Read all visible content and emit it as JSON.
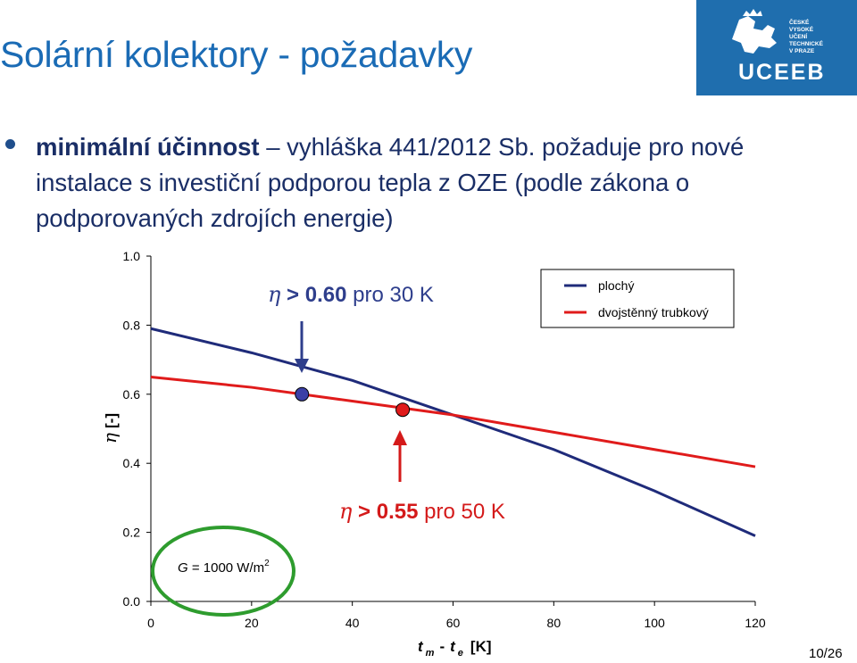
{
  "slide": {
    "title": "Solární kolektory - požadavky",
    "bullet_bold": "minimální účinnost",
    "bullet_rest": " – vyhláška 441/2012 Sb. požaduje pro nové instalace s investiční podporou tepla z OZE (podle zákona o podporovaných zdrojích energie)",
    "page_number": "10/26"
  },
  "logo": {
    "text": "UCEEB",
    "small_lines": [
      "ČESKÉ",
      "VYSOKÉ",
      "UČENÍ",
      "TECHNICKÉ",
      "V PRAZE"
    ],
    "background": "#1f6eae"
  },
  "chart_data": {
    "type": "line",
    "xlim": [
      0,
      120
    ],
    "ylim": [
      0.0,
      1.0
    ],
    "x_ticks": [
      0,
      20,
      40,
      60,
      80,
      100,
      120
    ],
    "y_ticks": [
      "0.0",
      "0.2",
      "0.4",
      "0.6",
      "0.8",
      "1.0"
    ],
    "xlabel": {
      "main_t1": "t",
      "sub1": "m",
      "dash": "-",
      "main_t2": "t",
      "sub2": "e",
      "unit": "[K]"
    },
    "ylabel": {
      "symbol": "η",
      "unit": "[-]"
    },
    "series": [
      {
        "name": "plochý",
        "color": "#1f2b7a",
        "x": [
          0,
          20,
          40,
          60,
          80,
          100,
          120
        ],
        "y": [
          0.79,
          0.72,
          0.64,
          0.54,
          0.44,
          0.32,
          0.19
        ]
      },
      {
        "name": "dvojstěnný trubkový",
        "color": "#e01b1b",
        "x": [
          0,
          20,
          40,
          60,
          80,
          100,
          120
        ],
        "y": [
          0.65,
          0.62,
          0.58,
          0.54,
          0.49,
          0.44,
          0.39
        ]
      }
    ],
    "markers": [
      {
        "x": 30,
        "y": 0.6,
        "color": "#3b3fa6"
      },
      {
        "x": 50,
        "y": 0.555,
        "color": "#e01b1b"
      }
    ],
    "annotations": [
      {
        "symbol": "η",
        "gt": " > ",
        "bold": "0.60",
        "rest": " pro 30 K",
        "arrow_color": "#2e3e8c"
      },
      {
        "symbol": "η",
        "gt": " > ",
        "bold": "0.55",
        "rest": " pro 50 K",
        "arrow_color": "#d41a1a"
      }
    ],
    "condition": {
      "symbol": "G",
      "eq": " = 1000 W/m",
      "sup": "2",
      "circle_color": "#2e9c2e"
    },
    "legend_position": "top-right",
    "grid": false
  }
}
